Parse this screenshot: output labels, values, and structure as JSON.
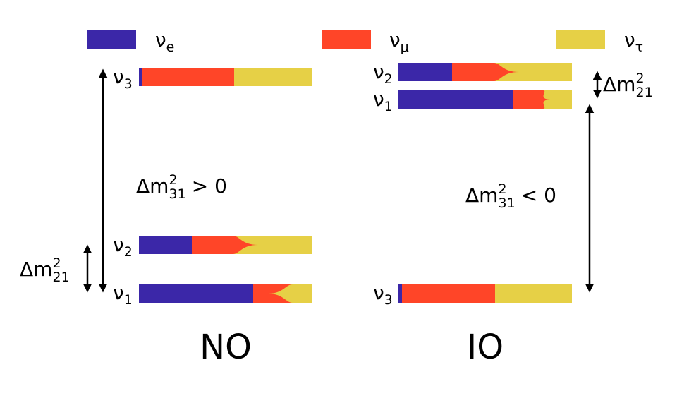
{
  "legend": [
    {
      "symbol": "ν",
      "sub": "e"
    },
    {
      "symbol": "ν",
      "sub": "μ"
    },
    {
      "symbol": "ν",
      "sub": "τ"
    }
  ],
  "panels": [
    {
      "title": "NO",
      "levels": [
        {
          "symbol": "ν",
          "sub": "3"
        },
        {
          "symbol": "ν",
          "sub": "2"
        },
        {
          "symbol": "ν",
          "sub": "1"
        }
      ],
      "splittings": [
        {
          "delta": "Δm",
          "sup": "2",
          "sub": "31",
          "relation": "> 0"
        },
        {
          "delta": "Δm",
          "sup": "2",
          "sub": "21"
        }
      ]
    },
    {
      "title": "IO",
      "levels": [
        {
          "symbol": "ν",
          "sub": "2"
        },
        {
          "symbol": "ν",
          "sub": "1"
        },
        {
          "symbol": "ν",
          "sub": "3"
        }
      ],
      "splittings": [
        {
          "delta": "Δm",
          "sup": "2",
          "sub": "21"
        },
        {
          "delta": "Δm",
          "sup": "2",
          "sub": "31",
          "relation": "< 0"
        }
      ]
    }
  ]
}
